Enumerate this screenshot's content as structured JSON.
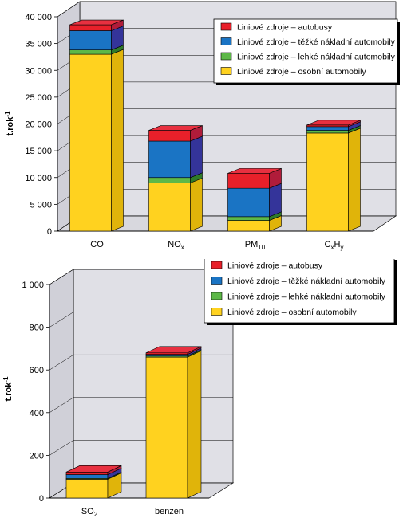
{
  "colors": {
    "autobusy": "#e8202a",
    "tezke": "#1a74c4",
    "lehke": "#5db848",
    "osobni": "#ffd21f",
    "wall": "#e0e0e6"
  },
  "chart_data": [
    {
      "type": "bar",
      "stacked": true,
      "three_d": true,
      "ylabel": "t.rok-1",
      "ylim": [
        0,
        40000
      ],
      "yticks": [
        "0",
        "5 000",
        "10 000",
        "15 000",
        "20 000",
        "25 000",
        "30 000",
        "35 000",
        "40 000"
      ],
      "ytick_values": [
        0,
        5000,
        10000,
        15000,
        20000,
        25000,
        30000,
        35000,
        40000
      ],
      "legend_position": "top-right",
      "categories": [
        {
          "base": "CO",
          "sub": ""
        },
        {
          "base": "NO",
          "sub": "x"
        },
        {
          "base": "PM",
          "sub": "10"
        },
        {
          "base": "C",
          "sub": "x",
          "base2": "H",
          "sub2": "y"
        }
      ],
      "series": [
        {
          "name": "Liniové zdroje – osobní automobily",
          "key": "osobni",
          "values": [
            33000,
            9000,
            2000,
            18300
          ]
        },
        {
          "name": "Liniové zdroje – lehké nákladní automobily",
          "key": "lehke",
          "values": [
            800,
            1000,
            700,
            500
          ]
        },
        {
          "name": "Liniové zdroje – těžké nákladní automobily",
          "key": "tezke",
          "values": [
            3600,
            6800,
            5300,
            700
          ]
        },
        {
          "name": "Liniové zdroje – autobusy",
          "key": "autobusy",
          "values": [
            1100,
            2000,
            2800,
            300
          ]
        }
      ]
    },
    {
      "type": "bar",
      "stacked": true,
      "three_d": true,
      "ylabel": "t.rok-1",
      "ylim": [
        0,
        1000
      ],
      "yticks": [
        "0",
        "200",
        "400",
        "600",
        "800",
        "1 000"
      ],
      "ytick_values": [
        0,
        200,
        400,
        600,
        800,
        1000
      ],
      "legend_position": "top-right",
      "categories": [
        {
          "base": "SO",
          "sub": "2"
        },
        {
          "base": "benzen",
          "sub": ""
        }
      ],
      "series": [
        {
          "name": "Liniové zdroje – osobní automobily",
          "key": "osobni",
          "values": [
            88,
            660
          ]
        },
        {
          "name": "Liniové zdroje – lehké nákladní automobily",
          "key": "lehke",
          "values": [
            4,
            5
          ]
        },
        {
          "name": "Liniové zdroje – těžké nákladní automobily",
          "key": "tezke",
          "values": [
            18,
            8
          ]
        },
        {
          "name": "Liniové zdroje – autobusy",
          "key": "autobusy",
          "values": [
            12,
            7
          ]
        }
      ]
    }
  ]
}
